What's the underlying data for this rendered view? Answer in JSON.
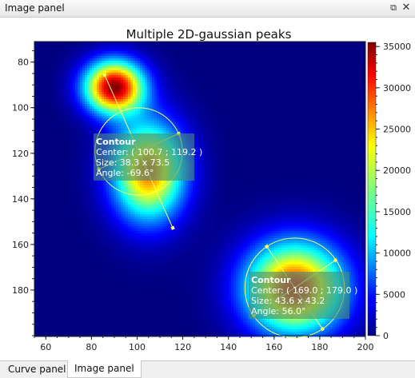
{
  "dock": {
    "title": "Image panel",
    "float_icon": "float-restore-icon",
    "close_icon": "close-icon"
  },
  "tabs": [
    {
      "label": "Curve panel",
      "active": false
    },
    {
      "label": "Image panel",
      "active": true
    }
  ],
  "chart_data": {
    "type": "heatmap",
    "title": "Multiple 2D-gaussian peaks",
    "colormap": "jet",
    "xlim": [
      55,
      200
    ],
    "ylim": [
      200,
      71
    ],
    "x_ticks": [
      "60",
      "80",
      "100",
      "120",
      "140",
      "160",
      "180",
      "200"
    ],
    "y_ticks": [
      "80",
      "100",
      "120",
      "140",
      "160",
      "180"
    ],
    "colorbar": {
      "range": [
        0,
        35500
      ],
      "ticks": [
        "0",
        "5000",
        "10000",
        "15000",
        "20000",
        "25000",
        "30000",
        "35000"
      ]
    },
    "peaks": [
      {
        "x": 90,
        "y": 91,
        "sx": 9,
        "sy": 8,
        "amplitude": 35000
      },
      {
        "x": 105,
        "y": 128,
        "sx": 11,
        "sy": 15,
        "amplitude": 27000
      },
      {
        "x": 169,
        "y": 179,
        "sx": 15,
        "sy": 14,
        "amplitude": 30000
      }
    ],
    "contours": [
      {
        "label": "Contour",
        "center_text": "Center: ( 100.7 ; 119.2 )",
        "size_text": "Size: 38.3 x 73.5",
        "angle_text": "Angle: -69.6°",
        "center": [
          100.7,
          119.2
        ],
        "size": [
          38.3,
          73.5
        ],
        "angle": -69.6
      },
      {
        "label": "Contour",
        "center_text": "Center: ( 169.0 ; 179.0 )",
        "size_text": "Size: 43.6 x 43.2",
        "angle_text": "Angle: 56.0°",
        "center": [
          169.0,
          179.0
        ],
        "size": [
          43.6,
          43.2
        ],
        "angle": 56.0
      }
    ]
  }
}
